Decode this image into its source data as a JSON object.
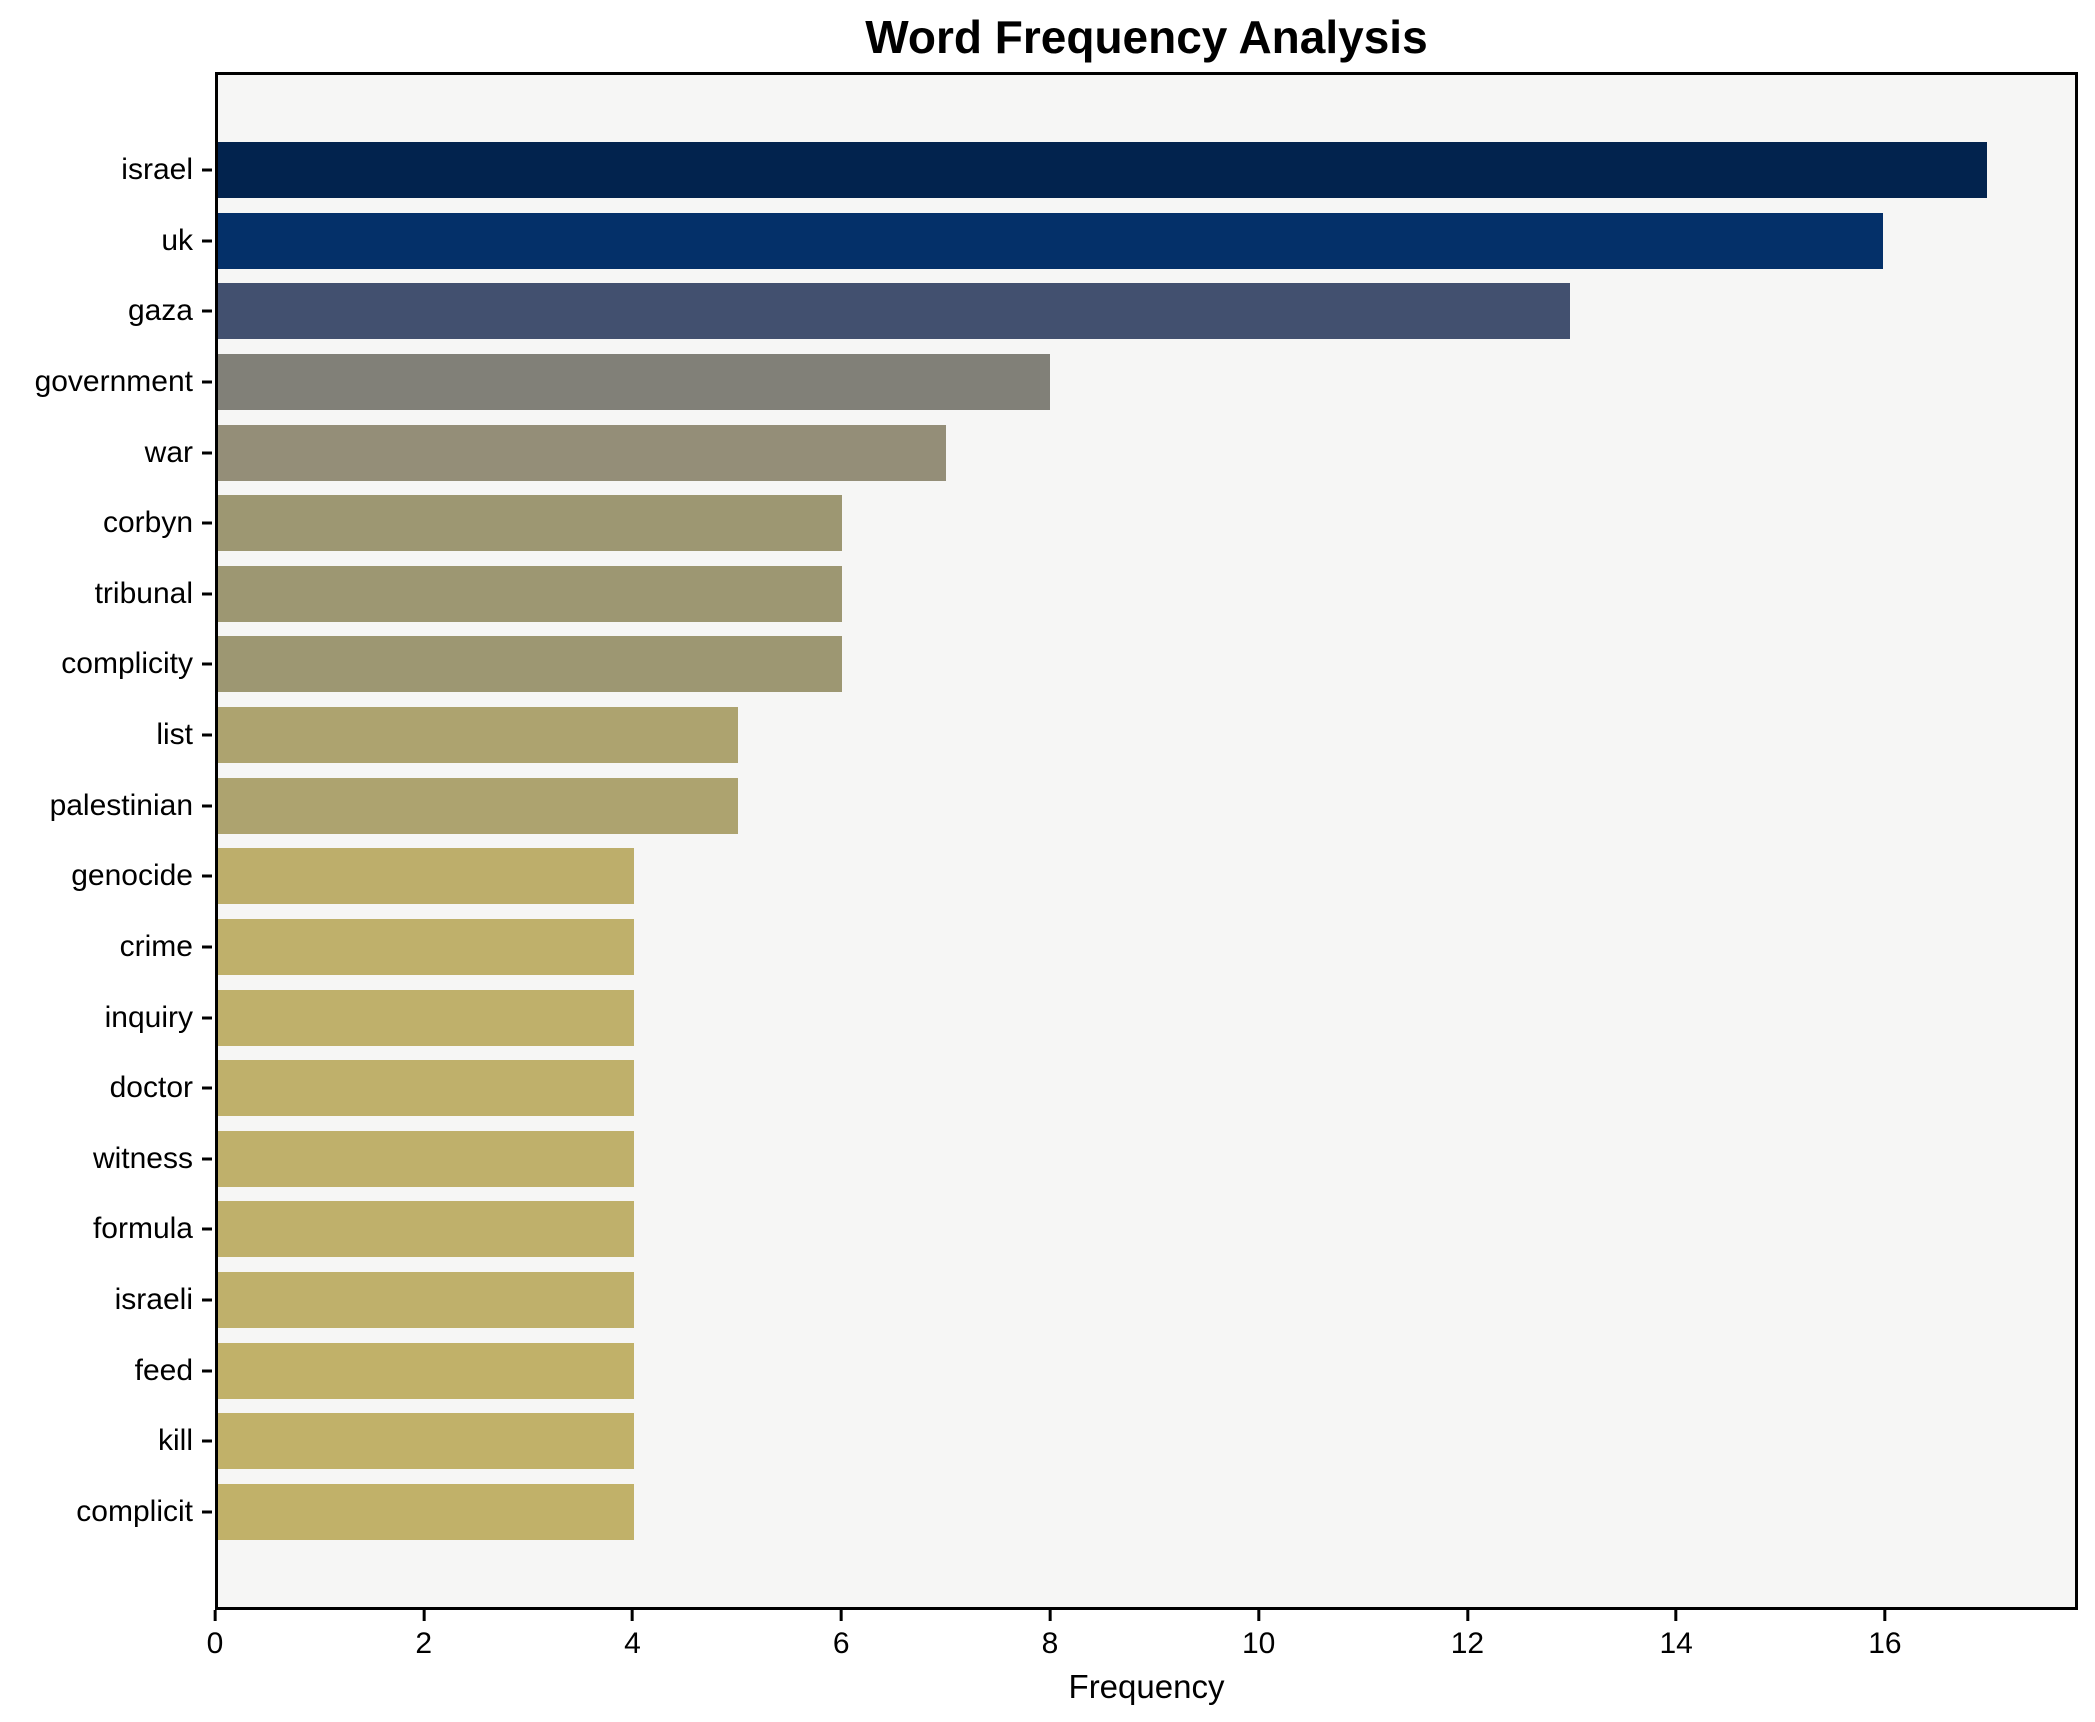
{
  "chart_data": {
    "type": "bar",
    "orientation": "horizontal",
    "title": "Word Frequency Analysis",
    "xlabel": "Frequency",
    "ylabel": "",
    "categories": [
      "israel",
      "uk",
      "gaza",
      "government",
      "war",
      "corbyn",
      "tribunal",
      "complicity",
      "list",
      "palestinian",
      "genocide",
      "crime",
      "inquiry",
      "doctor",
      "witness",
      "formula",
      "israeli",
      "feed",
      "kill",
      "complicit"
    ],
    "values": [
      17,
      16,
      13,
      8,
      7,
      6,
      6,
      6,
      5,
      5,
      4,
      4,
      4,
      4,
      4,
      4,
      4,
      4,
      4,
      4
    ],
    "bar_colors": [
      "#02234e",
      "#043069",
      "#42506f",
      "#818078",
      "#948e78",
      "#9d9772",
      "#9d9772",
      "#9d9772",
      "#ada36f",
      "#ada36f",
      "#bdae6b",
      "#bfb06b",
      "#bfb06b",
      "#bfb06b",
      "#bfb06b",
      "#bfb06b",
      "#bfb06b",
      "#c1b169",
      "#c1b169",
      "#c1b169"
    ],
    "xlim": [
      0,
      17.85
    ],
    "x_ticks": [
      0,
      2,
      4,
      6,
      8,
      10,
      12,
      14,
      16
    ],
    "grid": false,
    "legend": null,
    "plot_bg": "#f6f6f5",
    "fig_bg": "#ffffff",
    "bar_height_fraction": 0.8
  }
}
